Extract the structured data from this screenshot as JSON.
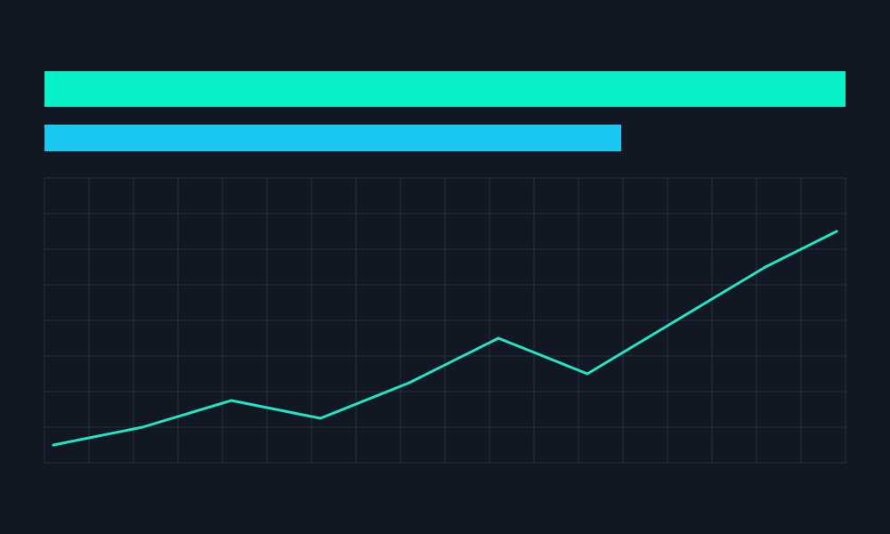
{
  "colors": {
    "background": "#111824",
    "bar_primary": "#08F0C8",
    "bar_secondary": "#18C8F0",
    "grid": "#263040",
    "line": "#1FE5C4"
  },
  "progress_bars": [
    {
      "fraction": 1.0
    },
    {
      "fraction": 0.72
    }
  ],
  "chart_data": {
    "type": "line",
    "title": "",
    "xlabel": "",
    "ylabel": "",
    "grid": true,
    "xlim": [
      0,
      18
    ],
    "ylim": [
      0,
      8
    ],
    "series": [
      {
        "x": [
          0.2,
          2.2,
          4.2,
          6.2,
          8.2,
          10.2,
          12.2,
          14.2,
          16.2,
          17.8
        ],
        "values": [
          0.5,
          1.0,
          1.75,
          1.25,
          2.25,
          3.5,
          2.5,
          4.0,
          5.5,
          6.5
        ]
      }
    ]
  }
}
